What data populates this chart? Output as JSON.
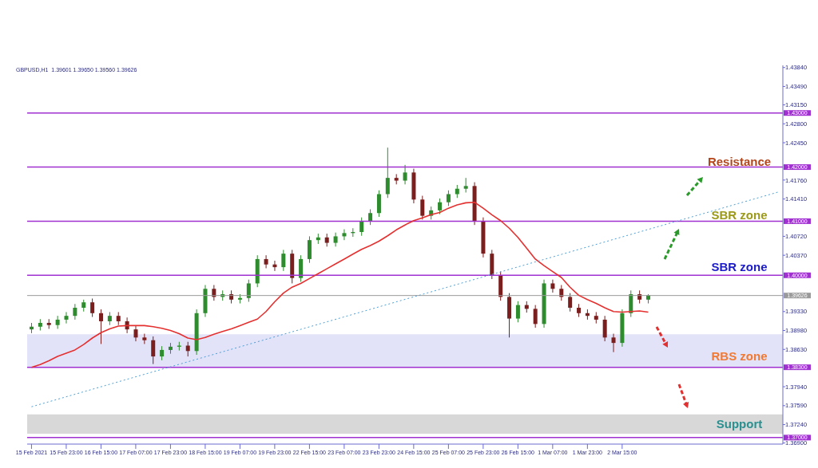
{
  "chart_data": {
    "type": "candlestick",
    "subtitle": "GBPUSD,H1  1.39601 1.39650 1.39560 1.39626",
    "categories": [
      "15 Feb 2021",
      null,
      null,
      null,
      "15 Feb 23:00",
      null,
      null,
      null,
      "16 Feb 15:00",
      null,
      null,
      null,
      "17 Feb 07:00",
      null,
      null,
      null,
      "17 Feb 23:00",
      null,
      null,
      null,
      "18 Feb 15:00",
      null,
      null,
      null,
      "19 Feb 07:00",
      null,
      null,
      null,
      "19 Feb 23:00",
      null,
      null,
      null,
      "22 Feb 15:00",
      null,
      null,
      null,
      "23 Feb 07:00",
      null,
      null,
      null,
      "23 Feb 23:00",
      null,
      null,
      null,
      "24 Feb 15:00",
      null,
      null,
      null,
      "25 Feb 07:00",
      null,
      null,
      null,
      "25 Feb 23:00",
      null,
      null,
      null,
      "26 Feb 15:00",
      null,
      null,
      null,
      "1 Mar 07:00",
      null,
      null,
      null,
      "1 Mar 23:00",
      null,
      null,
      null,
      "2 Mar 15:00",
      null,
      null,
      null,
      null,
      null,
      null,
      null,
      null,
      null,
      null,
      null,
      null,
      null,
      null,
      null,
      null,
      null,
      null
    ],
    "ohlc": [
      [
        1.39,
        1.3912,
        1.3893,
        1.3905
      ],
      [
        1.3905,
        1.3919,
        1.3898,
        1.3912
      ],
      [
        1.3912,
        1.3919,
        1.3901,
        1.3908
      ],
      [
        1.3908,
        1.3925,
        1.3901,
        1.3918
      ],
      [
        1.3918,
        1.3932,
        1.3911,
        1.3925
      ],
      [
        1.3925,
        1.3947,
        1.3918,
        1.394
      ],
      [
        1.394,
        1.3955,
        1.3933,
        1.395
      ],
      [
        1.395,
        1.3957,
        1.3923,
        1.393
      ],
      [
        1.393,
        1.3937,
        1.3873,
        1.3915
      ],
      [
        1.3915,
        1.3932,
        1.3908,
        1.3925
      ],
      [
        1.3925,
        1.3932,
        1.3908,
        1.3915
      ],
      [
        1.3915,
        1.3922,
        1.3893,
        1.39
      ],
      [
        1.39,
        1.3907,
        1.3878,
        1.3885
      ],
      [
        1.3885,
        1.3892,
        1.3873,
        1.388
      ],
      [
        1.388,
        1.3887,
        1.3836,
        1.385
      ],
      [
        1.385,
        1.3869,
        1.3843,
        1.3862
      ],
      [
        1.3862,
        1.3875,
        1.3855,
        1.3868
      ],
      [
        1.3868,
        1.3877,
        1.3861,
        1.387
      ],
      [
        1.387,
        1.3877,
        1.385,
        1.386
      ],
      [
        1.386,
        1.3937,
        1.3853,
        1.393
      ],
      [
        1.393,
        1.3982,
        1.3923,
        1.3975
      ],
      [
        1.3975,
        1.3982,
        1.3953,
        1.396
      ],
      [
        1.396,
        1.3972,
        1.3953,
        1.3965
      ],
      [
        1.3965,
        1.3972,
        1.3948,
        1.3955
      ],
      [
        1.3955,
        1.3965,
        1.3948,
        1.3958
      ],
      [
        1.3958,
        1.3992,
        1.3951,
        1.3985
      ],
      [
        1.3985,
        1.4037,
        1.3978,
        1.403
      ],
      [
        1.403,
        1.4037,
        1.4013,
        1.402
      ],
      [
        1.402,
        1.4027,
        1.4008,
        1.4015
      ],
      [
        1.4015,
        1.4047,
        1.4008,
        1.404
      ],
      [
        1.404,
        1.4047,
        1.3985,
        1.3995
      ],
      [
        1.3995,
        1.4037,
        1.3988,
        1.403
      ],
      [
        1.403,
        1.4072,
        1.4023,
        1.4065
      ],
      [
        1.4065,
        1.4077,
        1.4058,
        1.407
      ],
      [
        1.407,
        1.4077,
        1.4053,
        1.406
      ],
      [
        1.406,
        1.4079,
        1.4053,
        1.4072
      ],
      [
        1.4072,
        1.4085,
        1.4065,
        1.4078
      ],
      [
        1.4078,
        1.4087,
        1.4071,
        1.408
      ],
      [
        1.408,
        1.4107,
        1.4073,
        1.41
      ],
      [
        1.41,
        1.4122,
        1.4093,
        1.4115
      ],
      [
        1.4115,
        1.4157,
        1.4108,
        1.415
      ],
      [
        1.415,
        1.4236,
        1.4143,
        1.418
      ],
      [
        1.418,
        1.4187,
        1.4168,
        1.4175
      ],
      [
        1.4175,
        1.4204,
        1.4168,
        1.419
      ],
      [
        1.419,
        1.4197,
        1.4133,
        1.414
      ],
      [
        1.414,
        1.4147,
        1.4103,
        1.411
      ],
      [
        1.411,
        1.4127,
        1.4103,
        1.412
      ],
      [
        1.412,
        1.4142,
        1.4113,
        1.4135
      ],
      [
        1.4135,
        1.4157,
        1.4128,
        1.415
      ],
      [
        1.415,
        1.4167,
        1.4143,
        1.416
      ],
      [
        1.416,
        1.418,
        1.4153,
        1.4165
      ],
      [
        1.4165,
        1.4172,
        1.4093,
        1.41
      ],
      [
        1.41,
        1.4107,
        1.4033,
        1.404
      ],
      [
        1.404,
        1.4047,
        1.3993,
        1.4
      ],
      [
        1.4,
        1.4007,
        1.3953,
        1.396
      ],
      [
        1.396,
        1.3967,
        1.3885,
        1.392
      ],
      [
        1.392,
        1.3952,
        1.3913,
        1.3945
      ],
      [
        1.3945,
        1.3952,
        1.3931,
        1.3938
      ],
      [
        1.3938,
        1.3945,
        1.3903,
        1.391
      ],
      [
        1.391,
        1.3992,
        1.3903,
        1.3985
      ],
      [
        1.3985,
        1.3992,
        1.3968,
        1.3975
      ],
      [
        1.3975,
        1.3982,
        1.3953,
        1.396
      ],
      [
        1.396,
        1.3967,
        1.3933,
        1.394
      ],
      [
        1.394,
        1.3947,
        1.3923,
        1.393
      ],
      [
        1.393,
        1.3937,
        1.3918,
        1.3925
      ],
      [
        1.3925,
        1.3932,
        1.3911,
        1.3918
      ],
      [
        1.3918,
        1.3925,
        1.3878,
        1.3885
      ],
      [
        1.3885,
        1.3892,
        1.3858,
        1.3875
      ],
      [
        1.3875,
        1.3937,
        1.3868,
        1.393
      ],
      [
        1.393,
        1.3972,
        1.3923,
        1.3965
      ],
      [
        1.3965,
        1.3972,
        1.3948,
        1.3955
      ],
      [
        1.3955,
        1.3965,
        1.3948,
        1.3963
      ],
      null,
      null,
      null,
      null,
      null,
      null,
      null,
      null,
      null,
      null,
      null,
      null,
      null,
      null,
      null
    ],
    "colors": [
      "#2e8b2e",
      "#2e8b2e",
      "#7b1e1e",
      "#2e8b2e",
      "#2e8b2e",
      "#2e8b2e",
      "#2e8b2e",
      "#7b1e1e",
      "#7b1e1e",
      "#2e8b2e",
      "#7b1e1e",
      "#7b1e1e",
      "#7b1e1e",
      "#7b1e1e",
      "#7b1e1e",
      "#2e8b2e",
      "#2e8b2e",
      "#2e8b2e",
      "#7b1e1e",
      "#2e8b2e",
      "#2e8b2e",
      "#7b1e1e",
      "#2e8b2e",
      "#7b1e1e",
      "#2e8b2e",
      "#2e8b2e",
      "#2e8b2e",
      "#7b1e1e",
      "#7b1e1e",
      "#2e8b2e",
      "#7b1e1e",
      "#2e8b2e",
      "#2e8b2e",
      "#2e8b2e",
      "#7b1e1e",
      "#2e8b2e",
      "#2e8b2e",
      "#2e8b2e",
      "#2e8b2e",
      "#2e8b2e",
      "#2e8b2e",
      "#2e8b2e",
      "#7b1e1e",
      "#2e8b2e",
      "#7b1e1e",
      "#7b1e1e",
      "#2e8b2e",
      "#2e8b2e",
      "#2e8b2e",
      "#2e8b2e",
      "#2e8b2e",
      "#7b1e1e",
      "#7b1e1e",
      "#7b1e1e",
      "#7b1e1e",
      "#7b1e1e",
      "#2e8b2e",
      "#7b1e1e",
      "#7b1e1e",
      "#2e8b2e",
      "#7b1e1e",
      "#7b1e1e",
      "#7b1e1e",
      "#7b1e1e",
      "#7b1e1e",
      "#7b1e1e",
      "#7b1e1e",
      "#7b1e1e",
      "#2e8b2e",
      "#2e8b2e",
      "#7b1e1e",
      "#2e8b2e",
      null,
      null,
      null,
      null,
      null,
      null,
      null,
      null,
      null,
      null,
      null,
      null,
      null,
      null,
      null
    ],
    "series": [
      {
        "type": "line",
        "color": "#e53030",
        "values": [
          1.383,
          1.3835,
          1.3842,
          1.385,
          1.3856,
          1.3862,
          1.3872,
          1.3884,
          1.3894,
          1.3901,
          1.3906,
          1.3907,
          1.3907,
          1.3907,
          1.3905,
          1.3902,
          1.3898,
          1.3892,
          1.3884,
          1.3881,
          1.3885,
          1.3891,
          1.3896,
          1.3901,
          1.3907,
          1.3913,
          1.3919,
          1.3933,
          1.3951,
          1.3967,
          1.3978,
          1.3985,
          1.3994,
          1.4003,
          1.4012,
          1.4021,
          1.403,
          1.4039,
          1.4048,
          1.4055,
          1.4063,
          1.4073,
          1.4084,
          1.4093,
          1.4101,
          1.4106,
          1.4112,
          1.4116,
          1.4124,
          1.413,
          1.4134,
          1.4135,
          1.4124,
          1.4112,
          1.4101,
          1.4087,
          1.407,
          1.405,
          1.403,
          1.4018,
          1.4007,
          1.3996,
          1.3978,
          1.3963,
          1.3955,
          1.3948,
          1.394,
          1.3933,
          1.3932,
          1.3933,
          1.3934,
          1.3932,
          null,
          null,
          null,
          null,
          null,
          null,
          null,
          null,
          null,
          null,
          null,
          null,
          null,
          null,
          null
        ]
      },
      {
        "type": "line",
        "color": "#4aa0d8",
        "line_style": "dotted",
        "values": [
          1.3757,
          null,
          null,
          null,
          null,
          null,
          null,
          null,
          null,
          null,
          null,
          null,
          null,
          null,
          null,
          null,
          null,
          null,
          null,
          null,
          null,
          null,
          null,
          null,
          null,
          null,
          null,
          null,
          null,
          null,
          null,
          null,
          null,
          null,
          null,
          null,
          null,
          null,
          null,
          null,
          null,
          null,
          null,
          null,
          null,
          null,
          null,
          null,
          null,
          null,
          null,
          null,
          null,
          null,
          null,
          null,
          null,
          null,
          null,
          null,
          null,
          null,
          null,
          null,
          null,
          null,
          null,
          null,
          null,
          null,
          null,
          null,
          null,
          null,
          null,
          null,
          null,
          null,
          null,
          null,
          null,
          null,
          null,
          null,
          null,
          null,
          1.4154
        ]
      }
    ],
    "marker": "none",
    "ylim": [
      1.3688,
      1.4388
    ],
    "yticks": [
      {
        "value": 1.4384,
        "label": "1.43840"
      },
      {
        "value": 1.4349,
        "label": "1.43490"
      },
      {
        "value": 1.4315,
        "label": "1.43150"
      },
      {
        "value": 1.428,
        "label": "1.42800"
      },
      {
        "value": 1.4245,
        "label": "1.42450"
      },
      {
        "value": 1.4176,
        "label": "1.41760"
      },
      {
        "value": 1.4141,
        "label": "1.41410"
      },
      {
        "value": 1.4072,
        "label": "1.40720"
      },
      {
        "value": 1.4037,
        "label": "1.40370"
      },
      {
        "value": 1.3933,
        "label": "1.39330"
      },
      {
        "value": 1.3898,
        "label": "1.38980"
      },
      {
        "value": 1.3863,
        "label": "1.38630"
      },
      {
        "value": 1.3794,
        "label": "1.37940"
      },
      {
        "value": 1.3759,
        "label": "1.37590"
      },
      {
        "value": 1.3724,
        "label": "1.37240"
      },
      {
        "value": 1.369,
        "label": "1.36900"
      }
    ],
    "ref_lines": [
      {
        "axis": "y",
        "value": 1.43,
        "label": "1.43000",
        "color": "#a030d0"
      },
      {
        "axis": "y",
        "value": 1.42,
        "label": "1.42000",
        "color": "#a030d0"
      },
      {
        "axis": "y",
        "value": 1.41,
        "label": "1.41000",
        "color": "#a030d0"
      },
      {
        "axis": "y",
        "value": 1.4,
        "label": "1.40000",
        "color": "#a030d0"
      },
      {
        "axis": "y",
        "value": 1.383,
        "label": "1.38300",
        "color": "#a030d0"
      },
      {
        "axis": "y",
        "value": 1.37,
        "label": "1.37000",
        "color": "#a030d0"
      },
      {
        "axis": "y",
        "value": 1.39626,
        "label": "1.39626",
        "color": "#9a9a9a"
      }
    ],
    "bands": [
      {
        "axis": "y",
        "from": 1.383,
        "to": 1.3891,
        "color": "#e2e2f8"
      },
      {
        "axis": "y",
        "from": 1.3707,
        "to": 1.3743,
        "color": "#d8d8d8"
      }
    ],
    "annotations": [
      "Resistance",
      "SBR zone",
      "SBR zone",
      "RBS zone",
      "Support"
    ]
  }
}
